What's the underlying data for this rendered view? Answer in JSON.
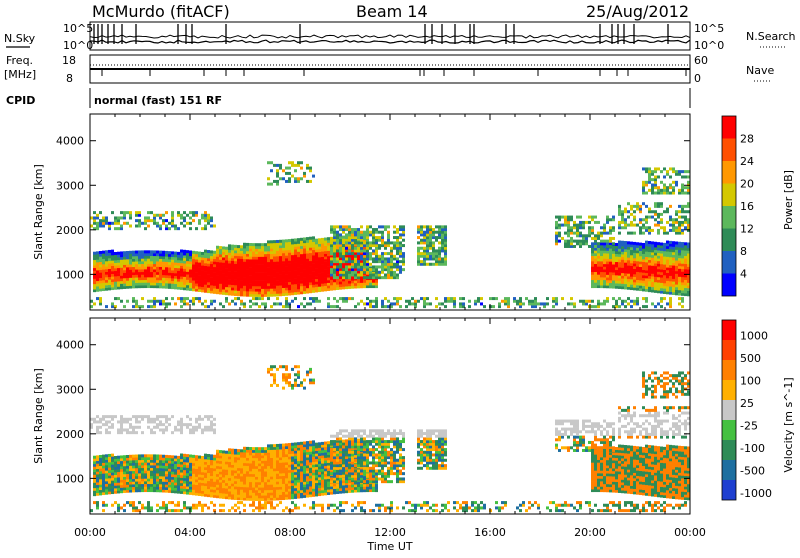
{
  "header": {
    "station": "McMurdo (fitACF)",
    "beam": "Beam 14",
    "date": "25/Aug/2012"
  },
  "summary": {
    "nsky_label": "N.Sky",
    "nsearch_label": "N.Search",
    "nsky_ticks": [
      "10^5",
      "10^0"
    ],
    "nsearch_ticks": [
      "10^5",
      "10^0"
    ],
    "freq_label_1": "Freq.",
    "freq_label_2": "[MHz]",
    "freq_ticks": [
      "18",
      "8"
    ],
    "nave_label": "Nave",
    "nave_ticks": [
      "60",
      "0"
    ],
    "cpid_label": "CPID",
    "cpid_value": "normal (fast) 151 RF"
  },
  "chart_data": [
    {
      "type": "heatmap",
      "name": "power-panel",
      "ylabel": "Slant Range [km]",
      "xlabel": "Time UT",
      "x_ticks": [
        "00:00",
        "04:00",
        "08:00",
        "12:00",
        "16:00",
        "20:00",
        "00:00"
      ],
      "y_ticks": [
        "1000",
        "2000",
        "3000",
        "4000"
      ],
      "xlim": [
        0,
        24
      ],
      "ylim": [
        200,
        4600
      ],
      "colorbar_label": "Power [dB]",
      "colorbar_ticks": [
        "4",
        "8",
        "12",
        "16",
        "20",
        "24",
        "28"
      ],
      "colorbar_colors": [
        "#0000ff",
        "#2060c0",
        "#2e8b57",
        "#5cb85c",
        "#d4c800",
        "#ff9800",
        "#ff5000",
        "#ff0000"
      ]
    },
    {
      "type": "heatmap",
      "name": "velocity-panel",
      "ylabel": "Slant Range [km]",
      "xlabel": "Time UT",
      "x_ticks": [
        "00:00",
        "04:00",
        "08:00",
        "12:00",
        "16:00",
        "20:00",
        "00:00"
      ],
      "y_ticks": [
        "1000",
        "2000",
        "3000",
        "4000"
      ],
      "xlim": [
        0,
        24
      ],
      "ylim": [
        200,
        4600
      ],
      "colorbar_label": "Velocity [m s^-1]",
      "colorbar_ticks": [
        "1000",
        "500",
        "100",
        "25",
        "-25",
        "-100",
        "-500",
        "-1000"
      ],
      "colorbar_colors": [
        "#1e3fd0",
        "#1e6fa0",
        "#2e8b57",
        "#44c040",
        "#c8c8c8",
        "#ffb000",
        "#ff8000",
        "#ff4000",
        "#ff0000"
      ]
    }
  ],
  "axis": {
    "x_title": "Time UT"
  }
}
